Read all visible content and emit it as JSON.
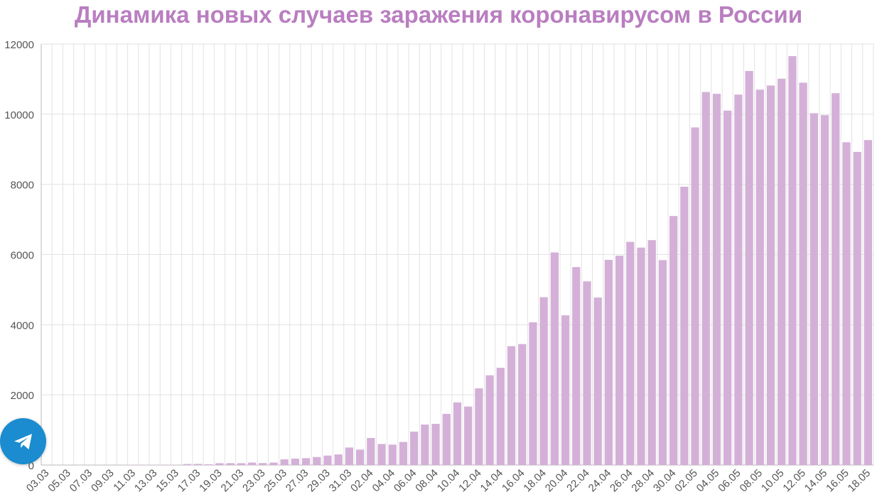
{
  "colors": {
    "title": "#b97ec0",
    "bar": "#d4b0d8",
    "grid": "#e2e2e2",
    "axis_text": "#555555",
    "telegram": "#1a8ccf"
  },
  "telegram_button": {
    "icon": "telegram-paper-plane-icon"
  },
  "chart_data": {
    "type": "bar",
    "title": "Динамика новых случаев заражения коронавирусом в России",
    "xlabel": "",
    "ylabel": "",
    "ylim": [
      0,
      12000
    ],
    "yticks": [
      0,
      2000,
      4000,
      6000,
      8000,
      10000,
      12000
    ],
    "grid": true,
    "legend": "none",
    "categories": [
      "03.03",
      "04.03",
      "05.03",
      "06.03",
      "07.03",
      "08.03",
      "09.03",
      "10.03",
      "11.03",
      "12.03",
      "13.03",
      "14.03",
      "15.03",
      "16.03",
      "17.03",
      "18.03",
      "19.03",
      "20.03",
      "21.03",
      "22.03",
      "23.03",
      "24.03",
      "25.03",
      "26.03",
      "27.03",
      "28.03",
      "29.03",
      "30.03",
      "31.03",
      "01.04",
      "02.04",
      "03.04",
      "04.04",
      "05.04",
      "06.04",
      "07.04",
      "08.04",
      "09.04",
      "10.04",
      "11.04",
      "12.04",
      "13.04",
      "14.04",
      "15.04",
      "16.04",
      "17.04",
      "18.04",
      "19.04",
      "20.04",
      "21.04",
      "22.04",
      "23.04",
      "24.04",
      "25.04",
      "26.04",
      "27.04",
      "28.04",
      "29.04",
      "30.04",
      "01.05",
      "02.05",
      "03.05",
      "04.05",
      "05.05",
      "06.05",
      "07.05",
      "08.05",
      "09.05",
      "10.05",
      "11.05",
      "12.05",
      "13.05",
      "14.05",
      "15.05",
      "16.05",
      "17.05",
      "18.05"
    ],
    "tick_labels": [
      "03.03",
      "05.03",
      "07.03",
      "09.03",
      "11.03",
      "13.03",
      "15.03",
      "17.03",
      "19.03",
      "21.03",
      "23.03",
      "25.03",
      "27.03",
      "29.03",
      "31.03",
      "02.04",
      "04.04",
      "06.04",
      "08.04",
      "10.04",
      "12.04",
      "14.04",
      "16.04",
      "18.04",
      "20.04",
      "22.04",
      "24.04",
      "26.04",
      "28.04",
      "30.04",
      "02.05",
      "04.05",
      "06.05",
      "08.05",
      "10.05",
      "12.05",
      "14.05",
      "16.05",
      "18.05"
    ],
    "values": [
      1,
      0,
      0,
      1,
      0,
      0,
      4,
      3,
      8,
      8,
      6,
      11,
      4,
      30,
      33,
      21,
      52,
      54,
      53,
      71,
      57,
      71,
      163,
      182,
      196,
      228,
      270,
      302,
      500,
      440,
      771,
      601,
      582,
      658,
      954,
      1154,
      1175,
      1459,
      1786,
      1667,
      2186,
      2558,
      2774,
      3388,
      3448,
      4070,
      4785,
      6060,
      4268,
      5642,
      5236,
      4774,
      5849,
      5966,
      6361,
      6198,
      6411,
      5841,
      7099,
      7933,
      9623,
      10633,
      10581,
      10102,
      10559,
      11231,
      10699,
      10817,
      11012,
      11656,
      10899,
      10028,
      9974,
      10598,
      9200,
      8926,
      9263
    ]
  }
}
